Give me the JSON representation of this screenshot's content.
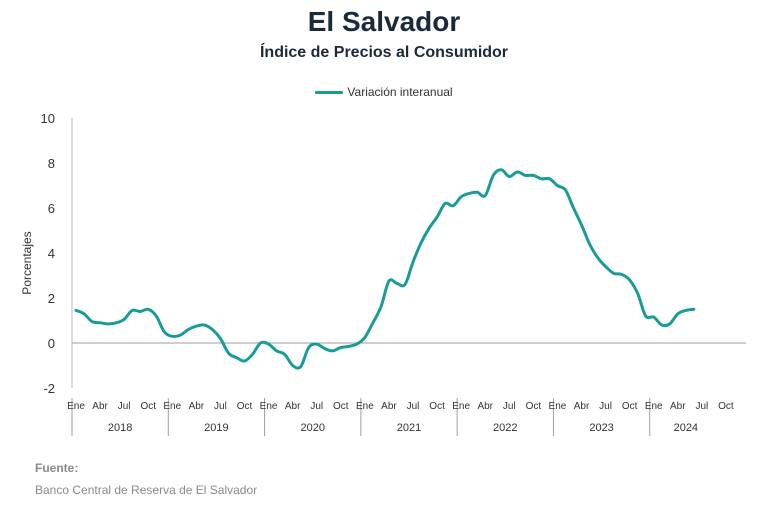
{
  "header": {
    "title": "El Salvador",
    "subtitle": "Índice de Precios al Consumidor"
  },
  "footer": {
    "source_label": "Fuente:",
    "source_text": "Banco Central de Reserva de El Salvador"
  },
  "chart_data": {
    "type": "line",
    "title": "El Salvador",
    "subtitle": "Índice de Precios al Consumidor",
    "ylabel": "Porcentajes",
    "xlabel": "",
    "ylim": [
      -2,
      10
    ],
    "yticks": [
      -2,
      0,
      2,
      4,
      6,
      8,
      10
    ],
    "legend_position": "top-center",
    "grid": false,
    "month_tick_labels": [
      "Ene",
      "Abr",
      "Jul",
      "Oct"
    ],
    "years": [
      "2018",
      "2019",
      "2020",
      "2021",
      "2022",
      "2023",
      "2024"
    ],
    "series": [
      {
        "name": "Variación interanual",
        "color": "#1a9c96",
        "start": "2018-01",
        "values": [
          1.45,
          1.3,
          0.95,
          0.9,
          0.85,
          0.9,
          1.05,
          1.45,
          1.4,
          1.5,
          1.2,
          0.5,
          0.3,
          0.35,
          0.6,
          0.75,
          0.8,
          0.6,
          0.2,
          -0.45,
          -0.65,
          -0.8,
          -0.5,
          0.0,
          -0.05,
          -0.35,
          -0.5,
          -1.0,
          -1.05,
          -0.2,
          -0.05,
          -0.25,
          -0.35,
          -0.2,
          -0.15,
          -0.05,
          0.25,
          0.9,
          1.6,
          2.75,
          2.65,
          2.6,
          3.6,
          4.45,
          5.1,
          5.6,
          6.2,
          6.1,
          6.5,
          6.65,
          6.7,
          6.55,
          7.45,
          7.7,
          7.4,
          7.6,
          7.45,
          7.45,
          7.3,
          7.3,
          7.0,
          6.8,
          6.0,
          5.25,
          4.4,
          3.8,
          3.4,
          3.1,
          3.05,
          2.8,
          2.2,
          1.2,
          1.15,
          0.8,
          0.85,
          1.3,
          1.45,
          1.5
        ]
      }
    ]
  }
}
